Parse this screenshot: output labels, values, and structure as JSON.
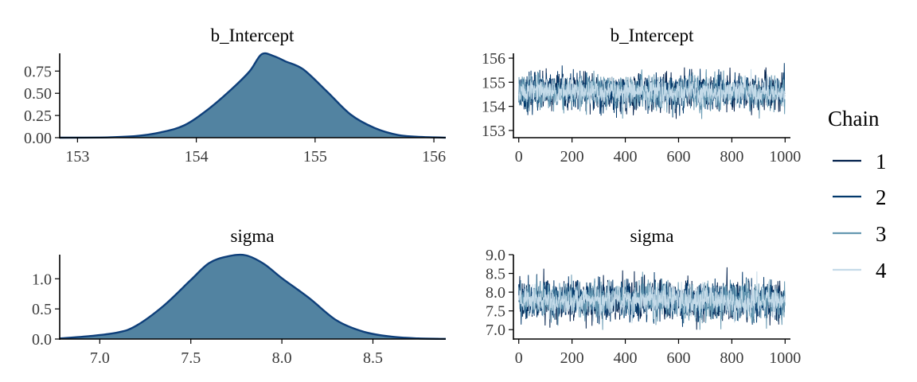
{
  "chart_data": [
    {
      "type": "area",
      "title": "b_Intercept",
      "xlabel": "",
      "ylabel": "",
      "xlim": [
        152.85,
        156.1
      ],
      "ylim": [
        0,
        0.95
      ],
      "x_ticks": [
        153,
        154,
        155,
        156
      ],
      "x_tick_labels": [
        "153",
        "154",
        "155",
        "156"
      ],
      "y_ticks": [
        0,
        0.25,
        0.5,
        0.75
      ],
      "y_tick_labels": [
        "0.00",
        "0.25",
        "0.50",
        "0.75"
      ],
      "x": [
        152.85,
        153.2,
        153.5,
        153.7,
        153.9,
        154.1,
        154.3,
        154.45,
        154.55,
        154.65,
        154.75,
        154.9,
        155.1,
        155.3,
        155.5,
        155.7,
        155.9,
        156.1
      ],
      "values": [
        0.0,
        0.002,
        0.02,
        0.06,
        0.14,
        0.32,
        0.55,
        0.75,
        0.94,
        0.92,
        0.86,
        0.77,
        0.52,
        0.26,
        0.11,
        0.03,
        0.008,
        0.001
      ],
      "fill_color": "#5283a1",
      "line_color": "#0e3f7a"
    },
    {
      "type": "line",
      "title": "b_Intercept",
      "xlabel": "",
      "ylabel": "",
      "xlim": [
        -20,
        1020
      ],
      "ylim": [
        152.7,
        156.2
      ],
      "x_ticks": [
        0,
        200,
        400,
        600,
        800,
        1000
      ],
      "x_tick_labels": [
        "0",
        "200",
        "400",
        "600",
        "800",
        "1000"
      ],
      "y_ticks": [
        153,
        154,
        155,
        156
      ],
      "y_tick_labels": [
        "153",
        "154",
        "155",
        "156"
      ],
      "series": [
        {
          "name": "1",
          "color": "#011f4b",
          "mean": 154.6,
          "sd": 0.42,
          "seed": 11
        },
        {
          "name": "2",
          "color": "#03396c",
          "mean": 154.6,
          "sd": 0.42,
          "seed": 23
        },
        {
          "name": "3",
          "color": "#6497b1",
          "mean": 154.6,
          "sd": 0.42,
          "seed": 37
        },
        {
          "name": "4",
          "color": "#c5dbe9",
          "mean": 154.6,
          "sd": 0.3,
          "seed": 51
        }
      ],
      "iterations": 1000
    },
    {
      "type": "area",
      "title": "sigma",
      "xlabel": "",
      "ylabel": "",
      "xlim": [
        6.78,
        8.9
      ],
      "ylim": [
        0,
        1.4
      ],
      "x_ticks": [
        7.0,
        7.5,
        8.0,
        8.5
      ],
      "x_tick_labels": [
        "7.0",
        "7.5",
        "8.0",
        "8.5"
      ],
      "y_ticks": [
        0,
        0.5,
        1.0
      ],
      "y_tick_labels": [
        "0.0",
        "0.5",
        "1.0"
      ],
      "x": [
        6.78,
        6.95,
        7.1,
        7.2,
        7.35,
        7.5,
        7.6,
        7.7,
        7.8,
        7.9,
        8.0,
        8.15,
        8.3,
        8.45,
        8.6,
        8.75,
        8.9
      ],
      "values": [
        0.01,
        0.05,
        0.11,
        0.22,
        0.55,
        0.98,
        1.26,
        1.37,
        1.39,
        1.25,
        1.01,
        0.68,
        0.31,
        0.12,
        0.04,
        0.01,
        0.002
      ],
      "fill_color": "#5283a1",
      "line_color": "#0e3f7a"
    },
    {
      "type": "line",
      "title": "sigma",
      "xlabel": "",
      "ylabel": "",
      "xlim": [
        -20,
        1020
      ],
      "ylim": [
        6.75,
        9.0
      ],
      "x_ticks": [
        0,
        200,
        400,
        600,
        800,
        1000
      ],
      "x_tick_labels": [
        "0",
        "200",
        "400",
        "600",
        "800",
        "1000"
      ],
      "y_ticks": [
        7.0,
        7.5,
        8.0,
        8.5,
        9.0
      ],
      "y_tick_labels": [
        "7.0",
        "7.5",
        "8.0",
        "8.5",
        "9.0"
      ],
      "series": [
        {
          "name": "1",
          "color": "#011f4b",
          "mean": 7.78,
          "sd": 0.3,
          "seed": 7
        },
        {
          "name": "2",
          "color": "#03396c",
          "mean": 7.78,
          "sd": 0.3,
          "seed": 19
        },
        {
          "name": "3",
          "color": "#6497b1",
          "mean": 7.78,
          "sd": 0.3,
          "seed": 31
        },
        {
          "name": "4",
          "color": "#c5dbe9",
          "mean": 7.78,
          "sd": 0.22,
          "seed": 43
        }
      ],
      "iterations": 1000
    }
  ],
  "legend": {
    "title": "Chain",
    "placement": "right",
    "items": [
      {
        "label": "1",
        "color": "#011f4b"
      },
      {
        "label": "2",
        "color": "#03396c"
      },
      {
        "label": "3",
        "color": "#6497b1"
      },
      {
        "label": "4",
        "color": "#c5dbe9"
      }
    ]
  }
}
